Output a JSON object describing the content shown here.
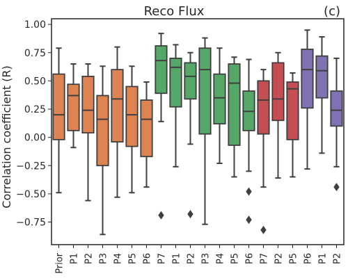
{
  "chart_data": {
    "type": "box",
    "title": "Reco Flux",
    "panel_label": "(c)",
    "xlabel": "",
    "ylabel": "Correlation coefficient (R)",
    "ylim": [
      -0.95,
      1.05
    ],
    "yticks": [
      -0.75,
      -0.5,
      -0.25,
      0.0,
      0.25,
      0.5,
      0.75,
      1.0
    ],
    "ytick_labels": [
      "−0.75",
      "−0.50",
      "−0.25",
      "0.00",
      "0.25",
      "0.50",
      "0.75",
      "1.00"
    ],
    "grid": false,
    "colors": {
      "orange": "#DD8452",
      "green": "#55A868",
      "red": "#C44E52",
      "purple": "#8172B3",
      "line": "#3f3f3f"
    },
    "boxes": [
      {
        "label": "Prior",
        "color": "orange",
        "whisker_low": -0.49,
        "q1": -0.02,
        "median": 0.2,
        "q3": 0.56,
        "whisker_high": 0.79,
        "outliers": []
      },
      {
        "label": "P1",
        "color": "orange",
        "whisker_low": -0.09,
        "q1": 0.06,
        "median": 0.37,
        "q3": 0.47,
        "whisker_high": 0.65,
        "outliers": []
      },
      {
        "label": "P2",
        "color": "orange",
        "whisker_low": -0.56,
        "q1": 0.04,
        "median": 0.24,
        "q3": 0.54,
        "whisker_high": 0.65,
        "outliers": []
      },
      {
        "label": "P3",
        "color": "orange",
        "whisker_low": -0.86,
        "q1": -0.25,
        "median": 0.16,
        "q3": 0.37,
        "whisker_high": 0.63,
        "outliers": []
      },
      {
        "label": "P4",
        "color": "orange",
        "whisker_low": -0.53,
        "q1": -0.04,
        "median": 0.34,
        "q3": 0.6,
        "whisker_high": 0.8,
        "outliers": []
      },
      {
        "label": "P5",
        "color": "orange",
        "whisker_low": -0.49,
        "q1": -0.08,
        "median": 0.2,
        "q3": 0.45,
        "whisker_high": 0.63,
        "outliers": []
      },
      {
        "label": "P6",
        "color": "orange",
        "whisker_low": -0.44,
        "q1": -0.17,
        "median": 0.16,
        "q3": 0.33,
        "whisker_high": 0.49,
        "outliers": []
      },
      {
        "label": "P7",
        "color": "green",
        "whisker_low": 0.14,
        "q1": 0.39,
        "median": 0.68,
        "q3": 0.81,
        "whisker_high": 0.92,
        "outliers": [
          -0.69
        ]
      },
      {
        "label": "P1",
        "color": "green",
        "whisker_low": -0.26,
        "q1": 0.27,
        "median": 0.62,
        "q3": 0.7,
        "whisker_high": 0.82,
        "outliers": []
      },
      {
        "label": "P2",
        "color": "green",
        "whisker_low": -0.06,
        "q1": 0.34,
        "median": 0.54,
        "q3": 0.66,
        "whisker_high": 0.75,
        "outliers": [
          -0.68
        ]
      },
      {
        "label": "P3",
        "color": "green",
        "whisker_low": -0.77,
        "q1": 0.03,
        "median": 0.6,
        "q3": 0.79,
        "whisker_high": 0.88,
        "outliers": []
      },
      {
        "label": "P4",
        "color": "green",
        "whisker_low": -0.23,
        "q1": 0.12,
        "median": 0.35,
        "q3": 0.56,
        "whisker_high": 0.79,
        "outliers": []
      },
      {
        "label": "P5",
        "color": "green",
        "whisker_low": -0.35,
        "q1": -0.07,
        "median": 0.48,
        "q3": 0.65,
        "whisker_high": 0.71,
        "outliers": []
      },
      {
        "label": "P6",
        "color": "green",
        "whisker_low": -0.3,
        "q1": 0.06,
        "median": 0.23,
        "q3": 0.41,
        "whisker_high": 0.69,
        "outliers": [
          -0.48,
          -0.73
        ]
      },
      {
        "label": "P7",
        "color": "red",
        "whisker_low": -0.44,
        "q1": 0.03,
        "median": 0.33,
        "q3": 0.5,
        "whisker_high": 0.6,
        "outliers": [
          -0.82
        ]
      },
      {
        "label": "P2",
        "color": "red",
        "whisker_low": -0.36,
        "q1": 0.15,
        "median": 0.34,
        "q3": 0.66,
        "whisker_high": 0.75,
        "outliers": []
      },
      {
        "label": "P5",
        "color": "red",
        "whisker_low": -0.35,
        "q1": -0.02,
        "median": 0.43,
        "q3": 0.49,
        "whisker_high": 0.57,
        "outliers": []
      },
      {
        "label": "P6",
        "color": "purple",
        "whisker_low": -0.28,
        "q1": 0.26,
        "median": 0.6,
        "q3": 0.78,
        "whisker_high": 0.95,
        "outliers": []
      },
      {
        "label": "P1",
        "color": "purple",
        "whisker_low": -0.14,
        "q1": 0.35,
        "median": 0.59,
        "q3": 0.72,
        "whisker_high": 0.89,
        "outliers": []
      },
      {
        "label": "P2",
        "color": "purple",
        "whisker_low": -0.26,
        "q1": 0.1,
        "median": 0.24,
        "q3": 0.41,
        "whisker_high": 0.7,
        "outliers": [
          -0.44
        ]
      }
    ]
  }
}
